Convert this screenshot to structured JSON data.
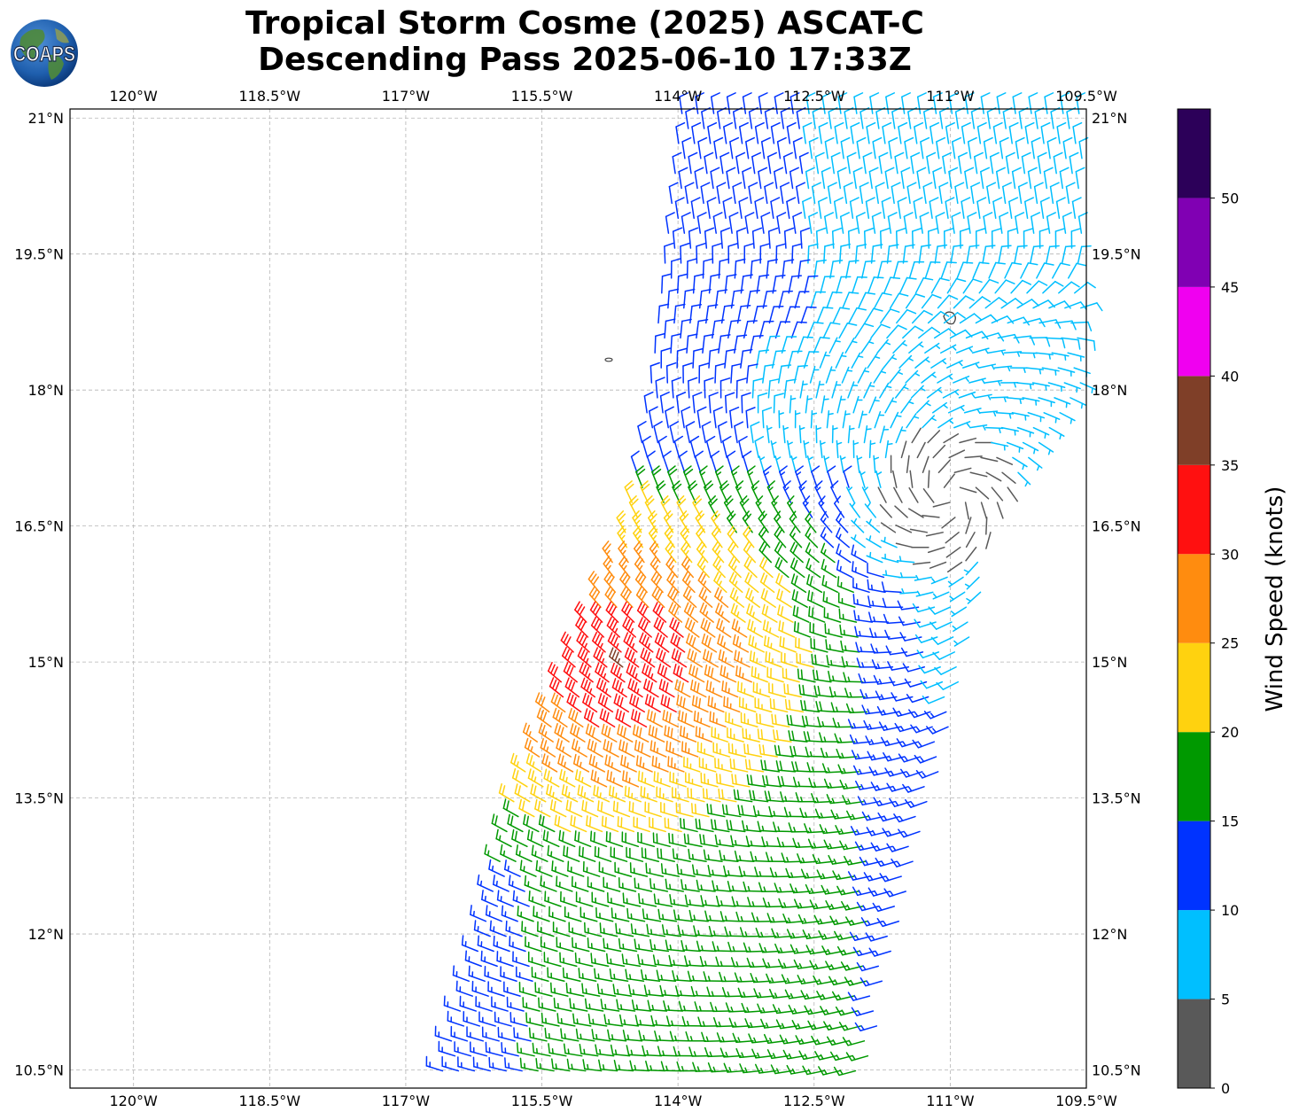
{
  "header": {
    "title_line1": "Tropical Storm Cosme (2025) ASCAT-C",
    "title_line2": "Descending Pass 2025-06-10 17:33Z",
    "logo_text": "COAPS"
  },
  "map": {
    "lon_ticks": [
      "120°W",
      "118.5°W",
      "117°W",
      "115.5°W",
      "114°W",
      "112.5°W",
      "111°W",
      "109.5°W"
    ],
    "lat_ticks": [
      "21°N",
      "19.5°N",
      "18°N",
      "16.5°N",
      "15°N",
      "13.5°N",
      "12°N",
      "10.5°N"
    ],
    "lon_range": [
      -120.7,
      -109.5
    ],
    "lat_range": [
      10.3,
      21.1
    ],
    "gridlines": true
  },
  "colorbar": {
    "label": "Wind Speed (knots)",
    "ticks": [
      "0",
      "5",
      "10",
      "15",
      "20",
      "25",
      "30",
      "35",
      "40",
      "45",
      "50"
    ],
    "bins": [
      {
        "min": 0,
        "max": 5,
        "color": "#595959"
      },
      {
        "min": 5,
        "max": 10,
        "color": "#00bfff"
      },
      {
        "min": 10,
        "max": 15,
        "color": "#0033ff"
      },
      {
        "min": 15,
        "max": 20,
        "color": "#009900"
      },
      {
        "min": 20,
        "max": 25,
        "color": "#ffd20f"
      },
      {
        "min": 25,
        "max": 30,
        "color": "#ff8c0f"
      },
      {
        "min": 30,
        "max": 35,
        "color": "#ff1010"
      },
      {
        "min": 35,
        "max": 40,
        "color": "#7f3f28"
      },
      {
        "min": 40,
        "max": 45,
        "color": "#f000f0"
      },
      {
        "min": 45,
        "max": 50,
        "color": "#8000b3"
      },
      {
        "min": 50,
        "max": 55,
        "color": "#2c0059"
      }
    ]
  }
}
